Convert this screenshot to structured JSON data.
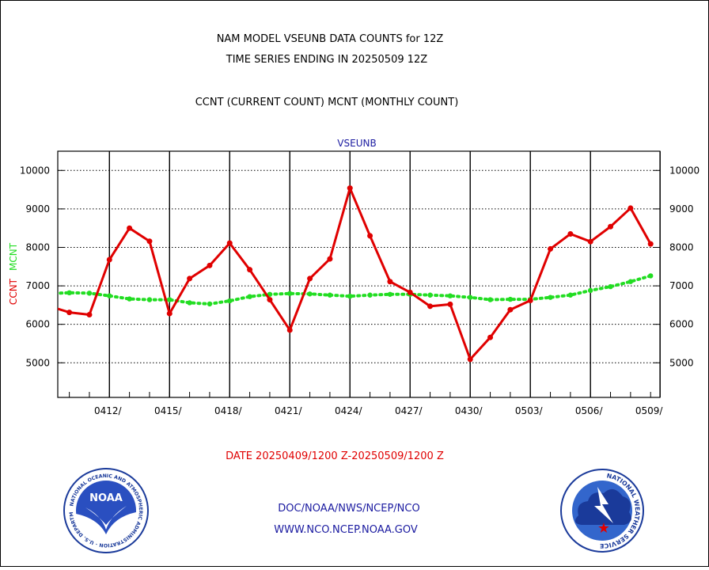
{
  "header": {
    "title_line1": "NAM MODEL VSEUNB DATA COUNTS for 12Z",
    "title_line2": "TIME SERIES ENDING IN 20250509 12Z",
    "subtitle": "CCNT (CURRENT COUNT) MCNT (MONTHLY COUNT)"
  },
  "footer": {
    "date_range": "DATE 20250409/1200 Z-20250509/1200 Z",
    "line1": "DOC/NOAA/NWS/NCEP/NCO",
    "line2": "WWW.NCO.NCEP.NOAA.GOV"
  },
  "logos": {
    "noaa": {
      "center_text": "NOAA",
      "ring_text": "NATIONAL OCEANIC AND ATMOSPHERIC ADMINISTRATION · U.S. DEPARTMENT OF COMMERCE",
      "colors": {
        "ring": "#1a3a9a",
        "inner": "#2a4fc0",
        "bird": "#ffffff"
      }
    },
    "nws": {
      "ring_text": "NATIONAL WEATHER SERVICE",
      "colors": {
        "ring": "#1a3a9a",
        "inner": "#3366cc",
        "cloud": "#1a3a9a",
        "star": "#e00000"
      }
    }
  },
  "colors": {
    "ccnt": "#e00000",
    "mcnt": "#22dd22",
    "plot_title": "#1a1aa0"
  },
  "chart_data": {
    "type": "line",
    "title": "VSEUNB",
    "ylabel_parts": [
      {
        "text": "CCNT",
        "color": "#e00000"
      },
      {
        "text": "MCNT",
        "color": "#22dd22"
      }
    ],
    "ylim": [
      4100,
      10500
    ],
    "yticks": [
      5000,
      6000,
      7000,
      8000,
      9000,
      10000
    ],
    "xlim": [
      0,
      30
    ],
    "x_tick_labels": [
      "0412/",
      "0415/",
      "0418/",
      "0421/",
      "0424/",
      "0427/",
      "0430/",
      "0503/",
      "0506/",
      "0509/"
    ],
    "x_tick_positions": [
      3,
      6,
      9,
      12,
      15,
      18,
      21,
      24,
      27,
      30
    ],
    "grid": true,
    "x": [
      0,
      1,
      2,
      3,
      4,
      5,
      6,
      7,
      8,
      9,
      10,
      11,
      12,
      13,
      14,
      15,
      16,
      17,
      18,
      19,
      20,
      21,
      22,
      23,
      24,
      25,
      26,
      27,
      28,
      29,
      30
    ],
    "series": [
      {
        "name": "CCNT",
        "values": [
          6470,
          6310,
          6250,
          7680,
          8500,
          8160,
          6280,
          7190,
          7530,
          8110,
          7420,
          6640,
          5850,
          7190,
          7700,
          9540,
          8300,
          7110,
          6830,
          6470,
          6520,
          5090,
          5660,
          6380,
          6620,
          7960,
          8350,
          8150,
          8540,
          9020,
          8090
        ]
      },
      {
        "name": "MCNT",
        "values": [
          6800,
          6820,
          6810,
          6740,
          6660,
          6640,
          6640,
          6560,
          6530,
          6610,
          6720,
          6780,
          6800,
          6790,
          6760,
          6730,
          6760,
          6780,
          6780,
          6760,
          6740,
          6700,
          6640,
          6650,
          6650,
          6700,
          6760,
          6880,
          6980,
          7110,
          7260
        ]
      }
    ]
  }
}
